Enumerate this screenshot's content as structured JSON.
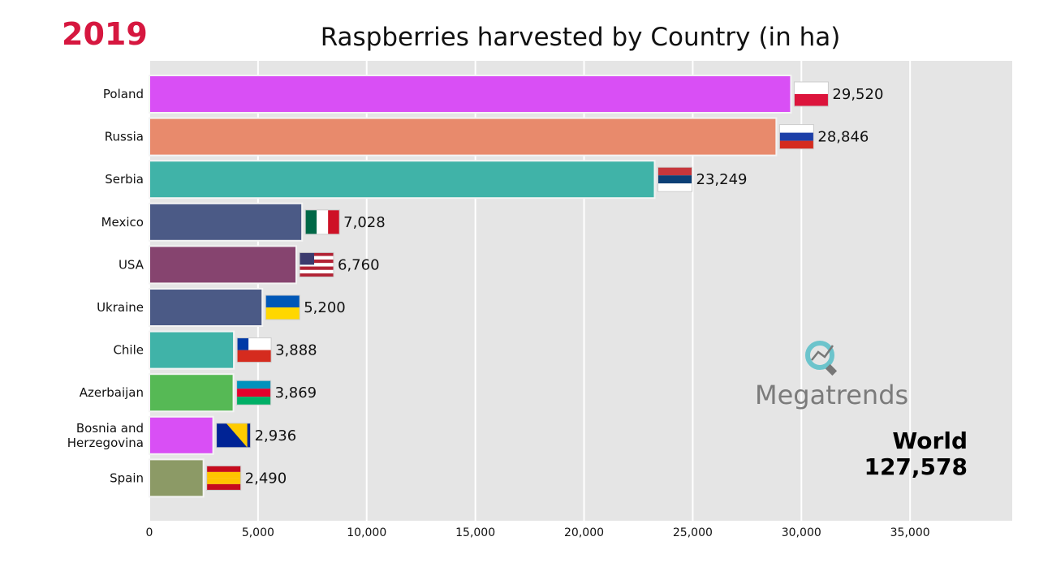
{
  "year": "2019",
  "chart_data": {
    "type": "bar",
    "orientation": "horizontal",
    "title": "Raspberries harvested by Country (in ha)",
    "categories": [
      "Poland",
      "Russia",
      "Serbia",
      "Mexico",
      "USA",
      "Ukraine",
      "Chile",
      "Azerbaijan",
      "Bosnia and Herzegovina",
      "Spain"
    ],
    "values": [
      29520,
      28846,
      23249,
      7028,
      6760,
      5200,
      3888,
      3869,
      2936,
      2490
    ],
    "value_labels": [
      "29,520",
      "28,846",
      "23,249",
      "7,028",
      "6,760",
      "5,200",
      "3,888",
      "3,869",
      "2,936",
      "2,490"
    ],
    "colors": [
      "#d94ff5",
      "#e88a6c",
      "#40b3a8",
      "#4b5a86",
      "#86446f",
      "#4b5a86",
      "#40b3a8",
      "#56b955",
      "#d94ff5",
      "#8c9a66"
    ],
    "flags": [
      "poland-flag-icon",
      "russia-flag-icon",
      "serbia-flag-icon",
      "mexico-flag-icon",
      "usa-flag-icon",
      "ukraine-flag-icon",
      "chile-flag-icon",
      "azerbaijan-flag-icon",
      "bosnia-flag-icon",
      "spain-flag-icon"
    ],
    "xticks": [
      0,
      5000,
      10000,
      15000,
      20000,
      25000,
      30000,
      35000
    ],
    "xtick_labels": [
      "0",
      "5,000",
      "10,000",
      "15,000",
      "20,000",
      "25,000",
      "30,000",
      "35,000"
    ],
    "xlim": [
      0,
      39700
    ],
    "grid": true
  },
  "logo": "Megatrends",
  "total": {
    "label": "World",
    "value": "127,578"
  }
}
